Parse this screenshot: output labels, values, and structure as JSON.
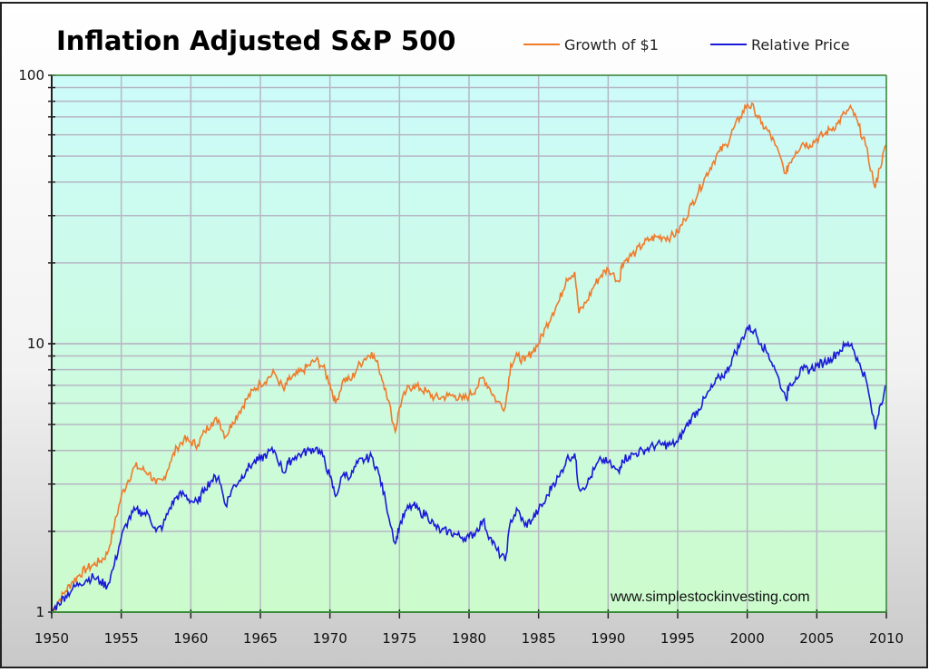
{
  "chart_data": {
    "type": "line",
    "title": "Inflation Adjusted S&P 500",
    "xlabel": "",
    "ylabel": "",
    "yscale": "log",
    "xlim": [
      1950,
      2010
    ],
    "ylim": [
      1,
      100
    ],
    "grid": true,
    "legend_position": "top-right",
    "x_ticks": [
      "1950",
      "1955",
      "1960",
      "1965",
      "1970",
      "1975",
      "1980",
      "1985",
      "1990",
      "1995",
      "2000",
      "2005",
      "2010"
    ],
    "y_ticks": [
      "1",
      "10",
      "100"
    ],
    "annotation": "www.simplestockinvesting.com",
    "colors": {
      "growth": "#f07a2a",
      "relative": "#1a1ad8",
      "bg_top": "#ccfbfb",
      "bg_bottom": "#ccfbcc",
      "grid": "#b7b7c3",
      "axis": "#3a8a3a"
    },
    "series": [
      {
        "name": "Growth of $1",
        "x": [
          1950,
          1950.5,
          1951,
          1951.5,
          1952,
          1952.5,
          1953,
          1953.5,
          1954,
          1954.5,
          1955,
          1955.5,
          1956,
          1956.5,
          1957,
          1957.5,
          1958,
          1958.5,
          1959,
          1959.5,
          1960,
          1960.5,
          1961,
          1961.5,
          1962,
          1962.5,
          1963,
          1963.5,
          1964,
          1964.5,
          1965,
          1965.5,
          1966,
          1966.7,
          1967,
          1967.5,
          1968,
          1968.5,
          1969,
          1969.5,
          1970,
          1970.4,
          1971,
          1971.5,
          1972,
          1972.5,
          1973,
          1973.5,
          1974,
          1974.7,
          1975,
          1975.5,
          1976,
          1976.5,
          1977,
          1977.5,
          1978,
          1978.5,
          1979,
          1979.5,
          1980,
          1980.5,
          1981,
          1981.5,
          1982,
          1982.6,
          1983,
          1983.5,
          1984,
          1984.5,
          1985,
          1985.5,
          1986,
          1986.5,
          1987,
          1987.6,
          1987.9,
          1988.5,
          1989,
          1989.5,
          1990,
          1990.8,
          1991,
          1991.5,
          1992,
          1992.5,
          1993,
          1993.5,
          1994,
          1994.5,
          1995,
          1995.5,
          1996,
          1996.5,
          1997,
          1997.5,
          1998,
          1998.5,
          1999,
          1999.5,
          2000,
          2000.5,
          2001,
          2001.5,
          2002,
          2002.8,
          2003,
          2003.5,
          2004,
          2004.5,
          2005,
          2005.5,
          2006,
          2006.5,
          2007,
          2007.5,
          2008,
          2008.5,
          2009.2,
          2009.5,
          2010
        ],
        "values": [
          1.0,
          1.1,
          1.2,
          1.3,
          1.38,
          1.45,
          1.5,
          1.55,
          1.65,
          2.1,
          2.7,
          3.1,
          3.5,
          3.4,
          3.3,
          3.0,
          3.1,
          3.6,
          4.1,
          4.4,
          4.3,
          4.2,
          4.7,
          5.1,
          5.2,
          4.5,
          5.1,
          5.6,
          6.2,
          6.7,
          7.1,
          7.4,
          7.8,
          6.7,
          7.3,
          7.6,
          7.9,
          8.3,
          8.7,
          8.2,
          7.1,
          6.0,
          7.4,
          7.3,
          8.2,
          8.8,
          9.3,
          8.2,
          6.8,
          4.7,
          5.8,
          6.7,
          7.0,
          6.8,
          6.6,
          6.3,
          6.3,
          6.4,
          6.4,
          6.2,
          6.4,
          6.8,
          7.5,
          6.8,
          6.1,
          5.8,
          8.4,
          9.0,
          8.6,
          9.3,
          10.0,
          11.5,
          13.0,
          14.5,
          17.5,
          18.5,
          13.0,
          14.5,
          16.5,
          18.0,
          19.0,
          17.0,
          20.0,
          21.0,
          22.0,
          23.5,
          24.5,
          25.0,
          25.0,
          25.0,
          26.0,
          29.0,
          33.0,
          37.0,
          42.0,
          47.0,
          52.0,
          55.0,
          63.0,
          70.0,
          78.0,
          75.0,
          66.0,
          62.0,
          55.0,
          43.0,
          47.0,
          52.0,
          56.0,
          55.0,
          58.0,
          60.0,
          63.0,
          66.0,
          72.0,
          75.0,
          65.0,
          55.0,
          38.0,
          45.0,
          55.0
        ]
      },
      {
        "name": "Relative Price",
        "x": [
          1950,
          1950.5,
          1951,
          1951.5,
          1952,
          1952.5,
          1953,
          1953.5,
          1954,
          1954.5,
          1955,
          1955.5,
          1956,
          1956.5,
          1957,
          1957.5,
          1958,
          1958.5,
          1959,
          1959.5,
          1960,
          1960.5,
          1961,
          1961.5,
          1962,
          1962.5,
          1963,
          1963.5,
          1964,
          1964.5,
          1965,
          1965.5,
          1966,
          1966.7,
          1967,
          1967.5,
          1968,
          1968.5,
          1969,
          1969.5,
          1970,
          1970.4,
          1971,
          1971.5,
          1972,
          1972.5,
          1973,
          1973.5,
          1974,
          1974.7,
          1975,
          1975.5,
          1976,
          1976.5,
          1977,
          1977.5,
          1978,
          1978.5,
          1979,
          1979.5,
          1980,
          1980.5,
          1981,
          1981.5,
          1982,
          1982.6,
          1983,
          1983.5,
          1984,
          1984.5,
          1985,
          1985.5,
          1986,
          1986.5,
          1987,
          1987.6,
          1987.9,
          1988.5,
          1989,
          1989.5,
          1990,
          1990.8,
          1991,
          1991.5,
          1992,
          1992.5,
          1993,
          1993.5,
          1994,
          1994.5,
          1995,
          1995.5,
          1996,
          1996.5,
          1997,
          1997.5,
          1998,
          1998.5,
          1999,
          1999.5,
          2000,
          2000.5,
          2001,
          2001.5,
          2002,
          2002.8,
          2003,
          2003.5,
          2004,
          2004.5,
          2005,
          2005.5,
          2006,
          2006.5,
          2007,
          2007.5,
          2008,
          2008.5,
          2009.2,
          2009.5,
          2010
        ],
        "values": [
          1.0,
          1.08,
          1.15,
          1.22,
          1.28,
          1.32,
          1.35,
          1.3,
          1.25,
          1.5,
          1.9,
          2.2,
          2.4,
          2.35,
          2.3,
          2.0,
          2.1,
          2.45,
          2.7,
          2.75,
          2.6,
          2.55,
          2.9,
          3.1,
          3.2,
          2.5,
          2.9,
          3.1,
          3.4,
          3.6,
          3.7,
          3.9,
          4.0,
          3.3,
          3.6,
          3.8,
          3.9,
          4.0,
          4.1,
          3.8,
          3.2,
          2.7,
          3.3,
          3.2,
          3.6,
          3.7,
          3.8,
          3.3,
          2.6,
          1.8,
          2.1,
          2.4,
          2.5,
          2.35,
          2.3,
          2.1,
          2.0,
          2.0,
          1.95,
          1.9,
          1.9,
          2.0,
          2.2,
          1.9,
          1.7,
          1.55,
          2.2,
          2.4,
          2.1,
          2.2,
          2.4,
          2.6,
          3.0,
          3.2,
          3.7,
          3.9,
          2.9,
          3.0,
          3.4,
          3.7,
          3.6,
          3.3,
          3.7,
          3.8,
          3.9,
          4.0,
          4.1,
          4.2,
          4.2,
          4.2,
          4.3,
          4.8,
          5.3,
          5.7,
          6.3,
          6.9,
          7.5,
          7.8,
          9.0,
          10.0,
          11.5,
          11.2,
          10.0,
          9.2,
          8.0,
          6.2,
          7.0,
          7.5,
          8.0,
          8.0,
          8.3,
          8.5,
          8.8,
          9.3,
          9.8,
          10.0,
          8.5,
          7.5,
          4.8,
          5.8,
          7.0
        ]
      }
    ]
  }
}
